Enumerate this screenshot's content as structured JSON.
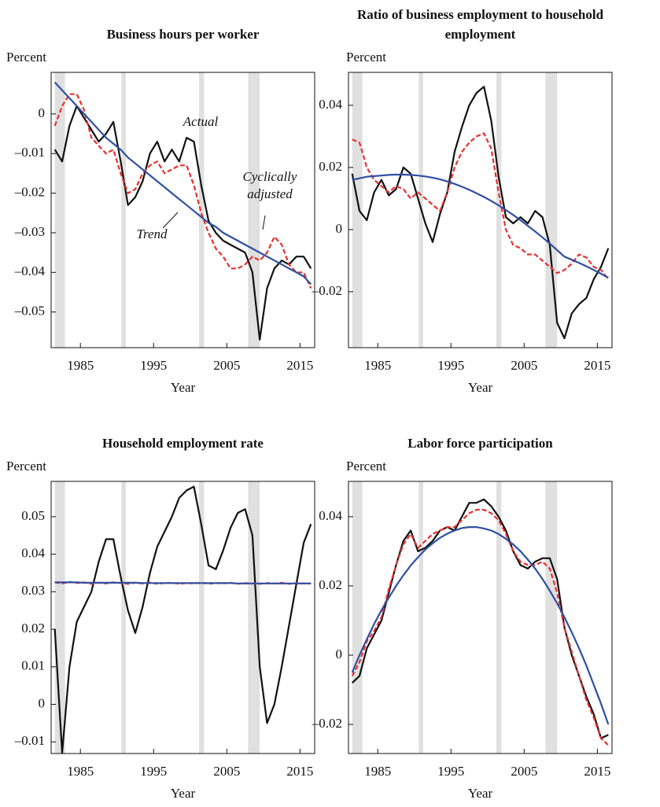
{
  "chart_data": [
    {
      "type": "line",
      "title": "Business hours per worker",
      "ylabel": "Percent",
      "xlabel": "Year",
      "xlim": [
        1981,
        2017
      ],
      "xticks": [
        1985,
        1995,
        2005,
        2015
      ],
      "ylim": [
        -0.059,
        0.0105
      ],
      "yticks": [
        0,
        {
          "value": -0.01,
          "label": "–0.01"
        },
        {
          "value": -0.02,
          "label": "–0.02"
        },
        {
          "value": -0.03,
          "label": "–0.03"
        },
        {
          "value": -0.04,
          "label": "–0.04"
        },
        {
          "value": -0.05,
          "label": "–0.05"
        }
      ],
      "recessions": [
        [
          1981.5,
          1982.9
        ],
        [
          1990.6,
          1991.2
        ],
        [
          2001.2,
          2001.9
        ],
        [
          2007.9,
          2009.5
        ]
      ],
      "x": [
        1981.5,
        1982.5,
        1983.5,
        1984.5,
        1985.5,
        1986.5,
        1987.5,
        1988.5,
        1989.5,
        1990.5,
        1991.5,
        1992.5,
        1993.5,
        1994.5,
        1995.5,
        1996.5,
        1997.5,
        1998.5,
        1999.5,
        2000.5,
        2001.5,
        2002.5,
        2003.5,
        2004.5,
        2005.5,
        2006.5,
        2007.5,
        2008.5,
        2009.5,
        2010.5,
        2011.5,
        2012.5,
        2013.5,
        2014.5,
        2015.5,
        2016.5
      ],
      "series": [
        {
          "name": "Actual",
          "color": "#111111",
          "style": "solid",
          "values": [
            -0.009,
            -0.012,
            -0.003,
            0.002,
            -0.001,
            -0.004,
            -0.007,
            -0.005,
            -0.002,
            -0.012,
            -0.023,
            -0.021,
            -0.017,
            -0.01,
            -0.007,
            -0.012,
            -0.009,
            -0.012,
            -0.006,
            -0.007,
            -0.018,
            -0.027,
            -0.03,
            -0.032,
            -0.033,
            -0.034,
            -0.035,
            -0.04,
            -0.057,
            -0.044,
            -0.039,
            -0.037,
            -0.038,
            -0.036,
            -0.036,
            -0.039
          ]
        },
        {
          "name": "Cyclically adjusted",
          "color": "#e8302f",
          "style": "dashed",
          "values": [
            -0.003,
            0.002,
            0.005,
            0.005,
            0.001,
            -0.006,
            -0.008,
            -0.01,
            -0.009,
            -0.015,
            -0.02,
            -0.019,
            -0.015,
            -0.013,
            -0.012,
            -0.015,
            -0.014,
            -0.013,
            -0.013,
            -0.018,
            -0.025,
            -0.03,
            -0.034,
            -0.036,
            -0.039,
            -0.039,
            -0.038,
            -0.036,
            -0.037,
            -0.035,
            -0.031,
            -0.033,
            -0.038,
            -0.04,
            -0.04,
            -0.044
          ]
        },
        {
          "name": "Trend",
          "color": "#2e4fa3",
          "style": "solid",
          "values": [
            0.008,
            0.006,
            0.004,
            0.002,
            0.0,
            -0.002,
            -0.004,
            -0.006,
            -0.0075,
            -0.009,
            -0.011,
            -0.0125,
            -0.014,
            -0.0155,
            -0.017,
            -0.0185,
            -0.02,
            -0.0215,
            -0.023,
            -0.0245,
            -0.026,
            -0.0275,
            -0.0285,
            -0.03,
            -0.031,
            -0.032,
            -0.033,
            -0.034,
            -0.035,
            -0.036,
            -0.037,
            -0.038,
            -0.039,
            -0.04,
            -0.041,
            -0.043
          ]
        }
      ]
    },
    {
      "type": "line",
      "title": "Ratio of business employment to household employment",
      "ylabel": "Percent",
      "xlabel": "Year",
      "xlim": [
        1981,
        2017
      ],
      "xticks": [
        1985,
        1995,
        2005,
        2015
      ],
      "ylim": [
        -0.038,
        0.0506
      ],
      "yticks": [
        0.04,
        0.02,
        0,
        {
          "value": -0.02,
          "label": "–0.02"
        }
      ],
      "recessions": [
        [
          1981.5,
          1982.9
        ],
        [
          1990.6,
          1991.2
        ],
        [
          2001.2,
          2001.9
        ],
        [
          2007.9,
          2009.5
        ]
      ],
      "x": [
        1981.5,
        1982.5,
        1983.5,
        1984.5,
        1985.5,
        1986.5,
        1987.5,
        1988.5,
        1989.5,
        1990.5,
        1991.5,
        1992.5,
        1993.5,
        1994.5,
        1995.5,
        1996.5,
        1997.5,
        1998.5,
        1999.5,
        2000.5,
        2001.5,
        2002.5,
        2003.5,
        2004.5,
        2005.5,
        2006.5,
        2007.5,
        2008.5,
        2009.5,
        2010.5,
        2011.5,
        2012.5,
        2013.5,
        2014.5,
        2015.5,
        2016.5
      ],
      "series": [
        {
          "color": "#111111",
          "style": "solid",
          "values": [
            0.018,
            0.006,
            0.003,
            0.012,
            0.016,
            0.011,
            0.013,
            0.02,
            0.018,
            0.01,
            0.002,
            -0.004,
            0.005,
            0.012,
            0.025,
            0.033,
            0.04,
            0.044,
            0.046,
            0.035,
            0.017,
            0.004,
            0.002,
            0.004,
            0.002,
            0.006,
            0.004,
            -0.005,
            -0.03,
            -0.035,
            -0.027,
            -0.024,
            -0.022,
            -0.016,
            -0.012,
            -0.006
          ]
        },
        {
          "color": "#e8302f",
          "style": "dashed",
          "values": [
            0.029,
            0.028,
            0.02,
            0.016,
            0.014,
            0.012,
            0.014,
            0.013,
            0.01,
            0.012,
            0.01,
            0.008,
            0.006,
            0.012,
            0.02,
            0.025,
            0.028,
            0.03,
            0.031,
            0.026,
            0.012,
            0.0,
            -0.005,
            -0.006,
            -0.008,
            -0.008,
            -0.01,
            -0.012,
            -0.014,
            -0.013,
            -0.011,
            -0.008,
            -0.009,
            -0.012,
            -0.013,
            -0.016
          ]
        },
        {
          "color": "#2e4fa3",
          "style": "solid",
          "values": [
            0.016,
            0.0165,
            0.017,
            0.0172,
            0.0174,
            0.0176,
            0.0177,
            0.0177,
            0.0176,
            0.0174,
            0.0171,
            0.0167,
            0.0162,
            0.0155,
            0.0147,
            0.0138,
            0.0128,
            0.0117,
            0.0105,
            0.0092,
            0.0078,
            0.0063,
            0.0047,
            0.003,
            0.0012,
            -0.0006,
            -0.0025,
            -0.0045,
            -0.0066,
            -0.0087,
            -0.0097,
            -0.0107,
            -0.0118,
            -0.013,
            -0.0142,
            -0.0155
          ]
        }
      ]
    },
    {
      "type": "line",
      "title": "Household employment rate",
      "ylabel": "Percent",
      "xlabel": "Year",
      "xlim": [
        1981,
        2017
      ],
      "xticks": [
        1985,
        1995,
        2005,
        2015
      ],
      "ylim": [
        -0.0131,
        0.0594
      ],
      "yticks": [
        0.05,
        0.04,
        0.03,
        0.02,
        0.01,
        0,
        {
          "value": -0.01,
          "label": "–0.01"
        }
      ],
      "recessions": [
        [
          1981.5,
          1982.9
        ],
        [
          1990.6,
          1991.2
        ],
        [
          2001.2,
          2001.9
        ],
        [
          2007.9,
          2009.5
        ]
      ],
      "x": [
        1981.5,
        1982.5,
        1983.5,
        1984.5,
        1985.5,
        1986.5,
        1987.5,
        1988.5,
        1989.5,
        1990.5,
        1991.5,
        1992.5,
        1993.5,
        1994.5,
        1995.5,
        1996.5,
        1997.5,
        1998.5,
        1999.5,
        2000.5,
        2001.5,
        2002.5,
        2003.5,
        2004.5,
        2005.5,
        2006.5,
        2007.5,
        2008.5,
        2009.5,
        2010.5,
        2011.5,
        2012.5,
        2013.5,
        2014.5,
        2015.5,
        2016.5
      ],
      "series": [
        {
          "color": "#111111",
          "style": "solid",
          "values": [
            0.02,
            -0.013,
            0.01,
            0.022,
            0.026,
            0.03,
            0.038,
            0.044,
            0.044,
            0.034,
            0.025,
            0.019,
            0.026,
            0.035,
            0.042,
            0.046,
            0.05,
            0.055,
            0.057,
            0.058,
            0.048,
            0.037,
            0.036,
            0.041,
            0.047,
            0.051,
            0.052,
            0.045,
            0.01,
            -0.005,
            0.0,
            0.01,
            0.021,
            0.032,
            0.043,
            0.048
          ]
        },
        {
          "color": "#e8302f",
          "style": "dashed",
          "values": [
            0.0325,
            0.0322,
            0.0326,
            0.0323,
            0.0325,
            0.0321,
            0.0324,
            0.0322,
            0.0325,
            0.0323,
            0.0321,
            0.0324,
            0.0322,
            0.0325,
            0.0321,
            0.0323,
            0.0324,
            0.0321,
            0.0323,
            0.0322,
            0.0324,
            0.0321,
            0.0323,
            0.0322,
            0.0324,
            0.0321,
            0.0323,
            0.0322,
            0.0321,
            0.0323,
            0.0322,
            0.0324,
            0.0321,
            0.0323,
            0.0322,
            0.0322
          ]
        },
        {
          "color": "#2e4fa3",
          "style": "solid",
          "values": [
            0.0325,
            0.0325,
            0.0325,
            0.0325,
            0.0324,
            0.0324,
            0.0324,
            0.0324,
            0.0324,
            0.0324,
            0.0324,
            0.0324,
            0.0323,
            0.0323,
            0.0323,
            0.0323,
            0.0323,
            0.0323,
            0.0323,
            0.0323,
            0.0323,
            0.0323,
            0.0323,
            0.0323,
            0.0323,
            0.0322,
            0.0322,
            0.0322,
            0.0322,
            0.0322,
            0.0322,
            0.0322,
            0.0322,
            0.0322,
            0.0322,
            0.0322
          ]
        }
      ]
    },
    {
      "type": "line",
      "title": "Labor force participation",
      "ylabel": "Percent",
      "xlabel": "Year",
      "xlim": [
        1981,
        2017
      ],
      "xticks": [
        1985,
        1995,
        2005,
        2015
      ],
      "ylim": [
        -0.0284,
        0.0502
      ],
      "yticks": [
        0.04,
        0.02,
        0,
        {
          "value": -0.02,
          "label": "–0.02"
        }
      ],
      "recessions": [
        [
          1981.5,
          1982.9
        ],
        [
          1990.6,
          1991.2
        ],
        [
          2001.2,
          2001.9
        ],
        [
          2007.9,
          2009.5
        ]
      ],
      "x": [
        1981.5,
        1982.5,
        1983.5,
        1984.5,
        1985.5,
        1986.5,
        1987.5,
        1988.5,
        1989.5,
        1990.5,
        1991.5,
        1992.5,
        1993.5,
        1994.5,
        1995.5,
        1996.5,
        1997.5,
        1998.5,
        1999.5,
        2000.5,
        2001.5,
        2002.5,
        2003.5,
        2004.5,
        2005.5,
        2006.5,
        2007.5,
        2008.5,
        2009.5,
        2010.5,
        2011.5,
        2012.5,
        2013.5,
        2014.5,
        2015.5,
        2016.5
      ],
      "series": [
        {
          "color": "#111111",
          "style": "solid",
          "values": [
            -0.008,
            -0.006,
            0.002,
            0.006,
            0.01,
            0.018,
            0.026,
            0.033,
            0.036,
            0.03,
            0.031,
            0.033,
            0.036,
            0.037,
            0.036,
            0.04,
            0.044,
            0.044,
            0.045,
            0.043,
            0.04,
            0.036,
            0.03,
            0.026,
            0.025,
            0.027,
            0.028,
            0.028,
            0.022,
            0.008,
            0.0,
            -0.006,
            -0.012,
            -0.017,
            -0.024,
            -0.023
          ]
        },
        {
          "color": "#e8302f",
          "style": "dashed",
          "values": [
            -0.006,
            -0.002,
            0.004,
            0.007,
            0.011,
            0.019,
            0.026,
            0.032,
            0.035,
            0.031,
            0.033,
            0.035,
            0.036,
            0.037,
            0.037,
            0.039,
            0.041,
            0.042,
            0.042,
            0.041,
            0.039,
            0.035,
            0.03,
            0.027,
            0.026,
            0.026,
            0.027,
            0.025,
            0.018,
            0.008,
            0.001,
            -0.006,
            -0.013,
            -0.018,
            -0.024,
            -0.026
          ]
        },
        {
          "color": "#2e4fa3",
          "style": "solid",
          "values": [
            -0.005,
            0.0,
            0.0046,
            0.009,
            0.013,
            0.0166,
            0.02,
            0.0231,
            0.0259,
            0.0283,
            0.0305,
            0.0323,
            0.0339,
            0.0351,
            0.036,
            0.0367,
            0.037,
            0.037,
            0.0366,
            0.036,
            0.035,
            0.0336,
            0.032,
            0.03,
            0.0276,
            0.025,
            0.022,
            0.0186,
            0.015,
            0.011,
            0.0066,
            0.002,
            -0.003,
            -0.0085,
            -0.014,
            -0.02
          ]
        }
      ]
    }
  ]
}
